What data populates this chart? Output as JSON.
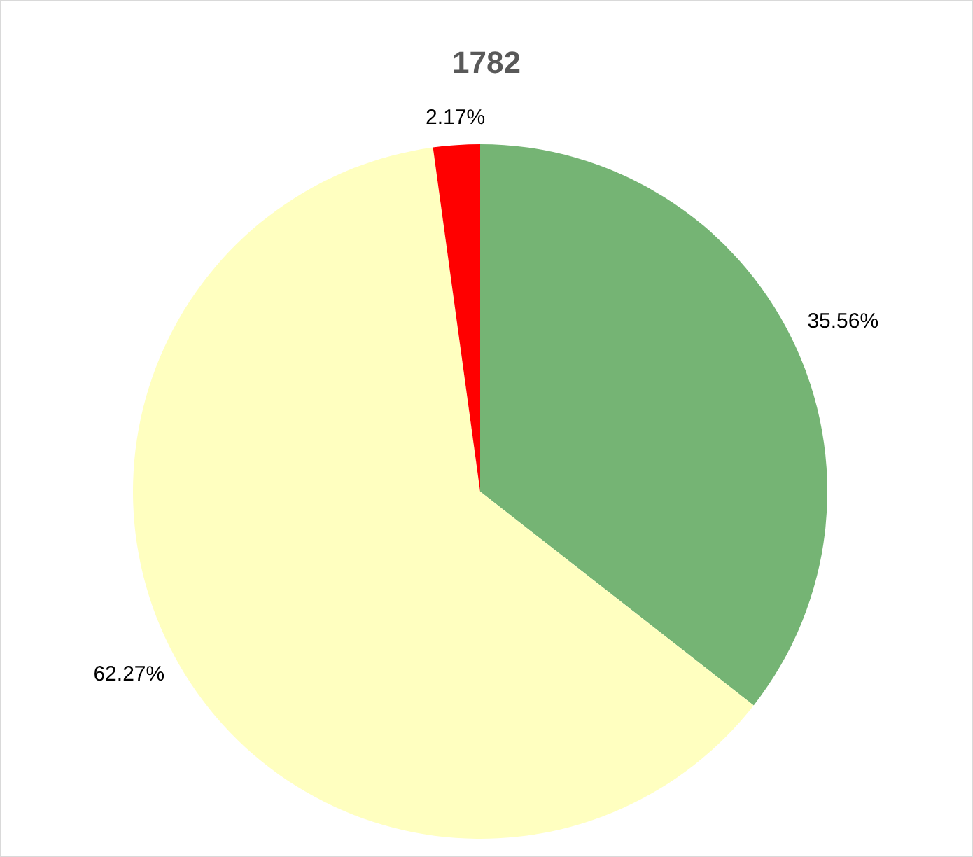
{
  "chart_data": {
    "type": "pie",
    "title": "1782",
    "categories": [
      null,
      null,
      null
    ],
    "values": [
      35.56,
      62.27,
      2.17
    ],
    "colors": [
      "#75b474",
      "#ffffc0",
      "#ff0000"
    ],
    "value_labels": [
      "35.56%",
      "62.27%",
      "2.17%"
    ]
  }
}
